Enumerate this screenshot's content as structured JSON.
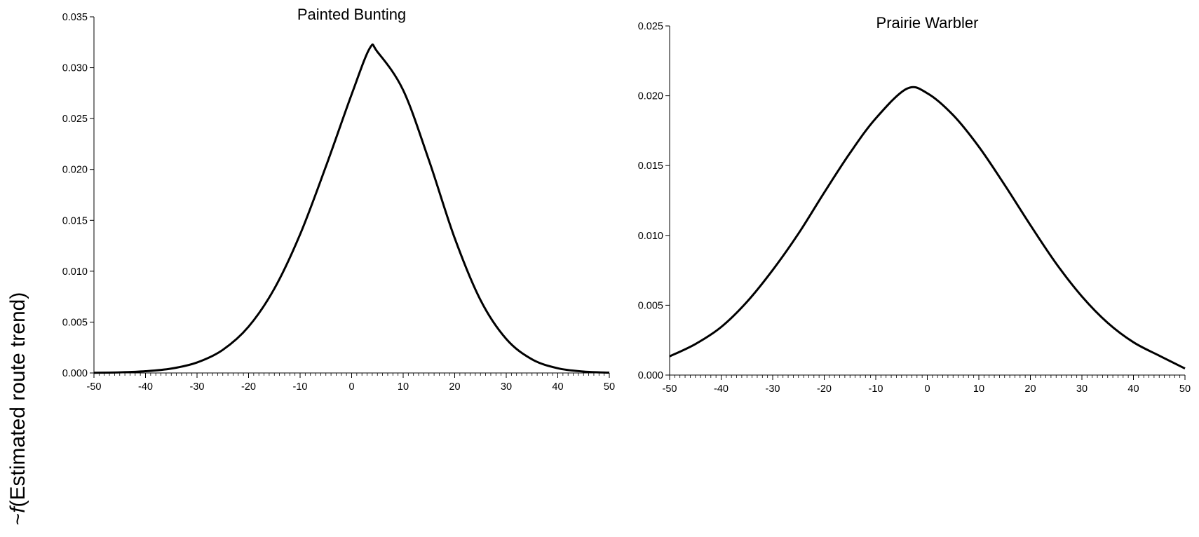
{
  "figure": {
    "ylabel_prefix": "~",
    "ylabel_fn": "f",
    "ylabel_rest": "(Estimated route trend)"
  },
  "chart_data": [
    {
      "type": "line",
      "title": "Painted Bunting",
      "xlabel": "",
      "ylabel": "",
      "xlim": [
        -50,
        50
      ],
      "ylim": [
        0,
        0.035
      ],
      "xticks": [
        -50,
        -40,
        -30,
        -20,
        -10,
        0,
        10,
        20,
        30,
        40,
        50
      ],
      "xtick_labels": [
        "-50",
        "-40",
        "-30",
        "-20",
        "-10",
        "0",
        "10",
        "20",
        "30",
        "40",
        "50"
      ],
      "yticks": [
        0,
        0.005,
        0.01,
        0.015,
        0.02,
        0.025,
        0.03,
        0.035
      ],
      "ytick_labels": [
        "0.000",
        "0.005",
        "0.010",
        "0.015",
        "0.020",
        "0.025",
        "0.030",
        "0.035"
      ],
      "grid": false,
      "series": [
        {
          "color": "#000000",
          "x": [
            -50,
            -45,
            -40,
            -35,
            -30,
            -25,
            -20,
            -15,
            -10,
            -5,
            0,
            3.5,
            5,
            10,
            15,
            20,
            25,
            30,
            35,
            40,
            45,
            50
          ],
          "y": [
            2e-05,
            6e-05,
            0.00017,
            0.00043,
            0.00103,
            0.00227,
            0.00455,
            0.00828,
            0.01362,
            0.02029,
            0.02738,
            0.0319,
            0.03156,
            0.02779,
            0.0209,
            0.01325,
            0.00717,
            0.00334,
            0.00134,
            0.00046,
            0.00014,
            3e-05
          ]
        }
      ]
    },
    {
      "type": "line",
      "title": "Prairie Warbler",
      "xlabel": "",
      "ylabel": "",
      "xlim": [
        -50,
        50
      ],
      "ylim": [
        0,
        0.025
      ],
      "xticks": [
        -50,
        -40,
        -30,
        -20,
        -10,
        0,
        10,
        20,
        30,
        40,
        50
      ],
      "xtick_labels": [
        "-50",
        "-40",
        "-30",
        "-20",
        "-10",
        "0",
        "10",
        "20",
        "30",
        "40",
        "50"
      ],
      "yticks": [
        0,
        0.005,
        0.01,
        0.015,
        0.02,
        0.025
      ],
      "ytick_labels": [
        "0.000",
        "0.005",
        "0.010",
        "0.015",
        "0.020",
        "0.025"
      ],
      "grid": false,
      "series": [
        {
          "color": "#000000",
          "x": [
            -50,
            -45,
            -40,
            -35,
            -30,
            -25,
            -20,
            -15,
            -10,
            -4,
            0,
            5,
            10,
            15,
            20,
            25,
            30,
            35,
            40,
            45,
            50
          ],
          "y": [
            0.00134,
            0.00222,
            0.00344,
            0.00524,
            0.00752,
            0.01013,
            0.01307,
            0.0159,
            0.01838,
            0.0205,
            0.02018,
            0.01862,
            0.01635,
            0.01362,
            0.01074,
            0.00799,
            0.00563,
            0.00374,
            0.00235,
            0.00139,
            0.00047
          ]
        }
      ]
    }
  ]
}
